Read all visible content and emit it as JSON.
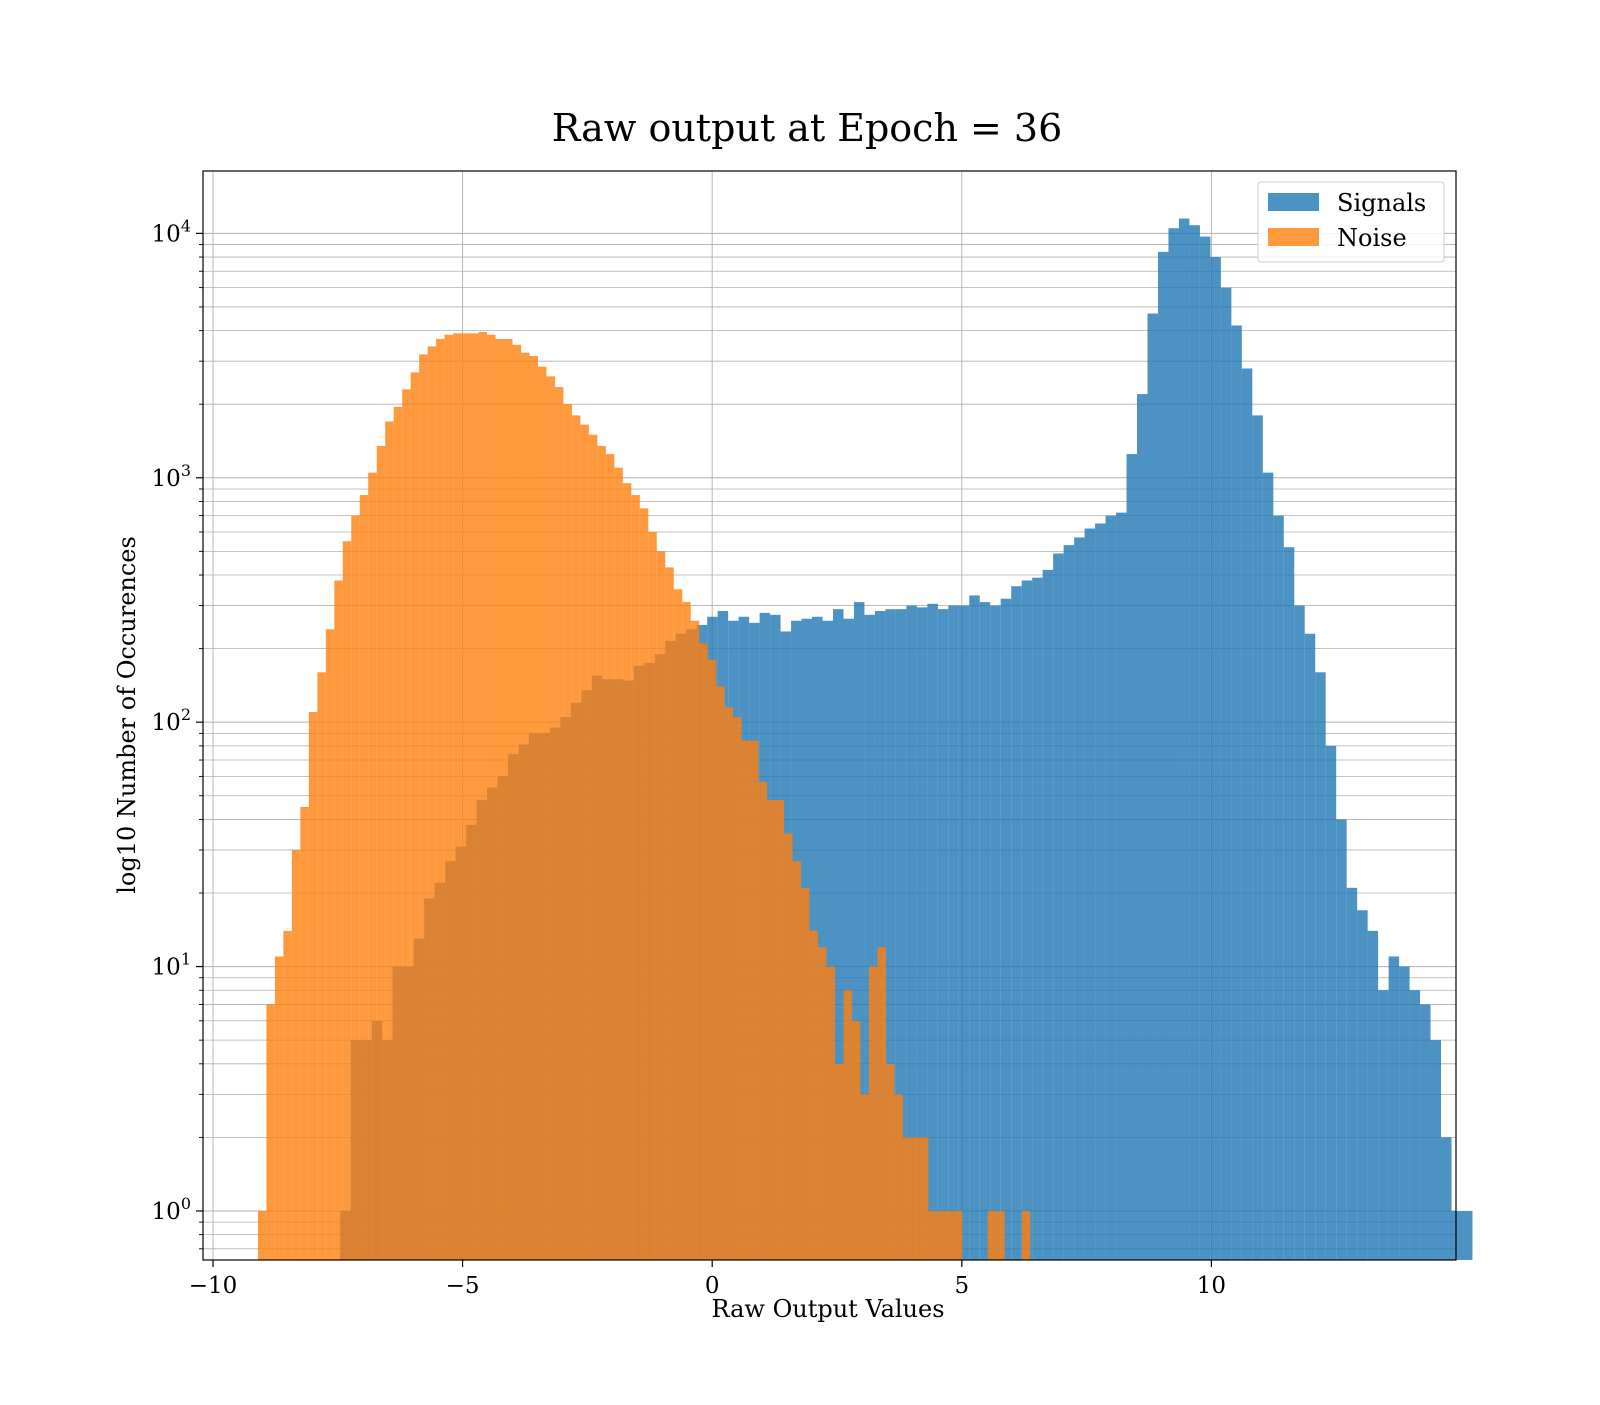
{
  "chart_data": {
    "type": "bar",
    "title": "Raw output at Epoch = 36",
    "xlabel": "Raw Output Values",
    "ylabel": "log10 Number of Occurences",
    "yscale": "log",
    "xlim": [
      -10.2,
      14.9
    ],
    "ylim": [
      0.63,
      18000
    ],
    "x_ticks": [
      {
        "value": -10,
        "label": "−10"
      },
      {
        "value": -5,
        "label": "−5"
      },
      {
        "value": 0,
        "label": "0"
      },
      {
        "value": 5,
        "label": "5"
      },
      {
        "value": 10,
        "label": "10"
      }
    ],
    "y_ticks": [
      {
        "value": 1,
        "base": "10",
        "exp": "0"
      },
      {
        "value": 10,
        "base": "10",
        "exp": "1"
      },
      {
        "value": 100,
        "base": "10",
        "exp": "2"
      },
      {
        "value": 1000,
        "base": "10",
        "exp": "3"
      },
      {
        "value": 10000,
        "base": "10",
        "exp": "4"
      }
    ],
    "grid": true,
    "legend_position": "top-right",
    "series": [
      {
        "name": "Signals",
        "color": "#1f77b4",
        "opacity": 0.8,
        "x_start": -7.45,
        "bin_width": 0.21,
        "values": [
          1,
          5,
          5,
          6,
          5,
          10,
          10,
          13,
          19,
          22,
          27,
          31,
          38,
          48,
          54,
          60,
          74,
          81,
          90,
          90,
          95,
          105,
          120,
          135,
          155,
          150,
          150,
          148,
          170,
          175,
          190,
          215,
          230,
          240,
          250,
          270,
          285,
          260,
          270,
          255,
          280,
          275,
          235,
          260,
          265,
          270,
          260,
          290,
          265,
          310,
          275,
          285,
          290,
          290,
          300,
          295,
          305,
          290,
          300,
          300,
          330,
          310,
          300,
          320,
          360,
          380,
          390,
          420,
          490,
          530,
          570,
          620,
          650,
          700,
          720,
          1250,
          2200,
          4700,
          8400,
          10500,
          11500,
          10800,
          9700,
          8000,
          6000,
          4200,
          2800,
          1800,
          1050,
          700,
          520,
          300,
          230,
          160,
          80,
          40,
          21,
          17,
          14,
          8,
          11,
          10,
          8,
          7,
          5,
          2,
          1,
          1
        ]
      },
      {
        "name": "Noise",
        "color": "#ff7f0e",
        "opacity": 0.8,
        "x_start": -9.1,
        "bin_width": 0.17,
        "values": [
          1,
          7,
          11,
          14,
          30,
          45,
          110,
          160,
          240,
          380,
          550,
          700,
          850,
          1050,
          1350,
          1700,
          1950,
          2300,
          2700,
          3200,
          3450,
          3700,
          3850,
          3900,
          3900,
          3900,
          3950,
          3850,
          3700,
          3700,
          3500,
          3250,
          3150,
          2850,
          2600,
          2350,
          2000,
          1800,
          1650,
          1500,
          1350,
          1250,
          1100,
          950,
          850,
          750,
          600,
          500,
          430,
          350,
          310,
          260,
          210,
          180,
          140,
          115,
          105,
          84,
          84,
          57,
          48,
          48,
          35,
          27,
          21,
          14,
          12,
          10,
          4,
          8,
          6,
          3,
          10,
          12,
          4,
          3,
          2,
          2,
          2,
          1,
          1,
          1,
          1,
          0,
          0,
          0,
          1,
          1,
          0,
          0,
          1
        ]
      }
    ]
  }
}
